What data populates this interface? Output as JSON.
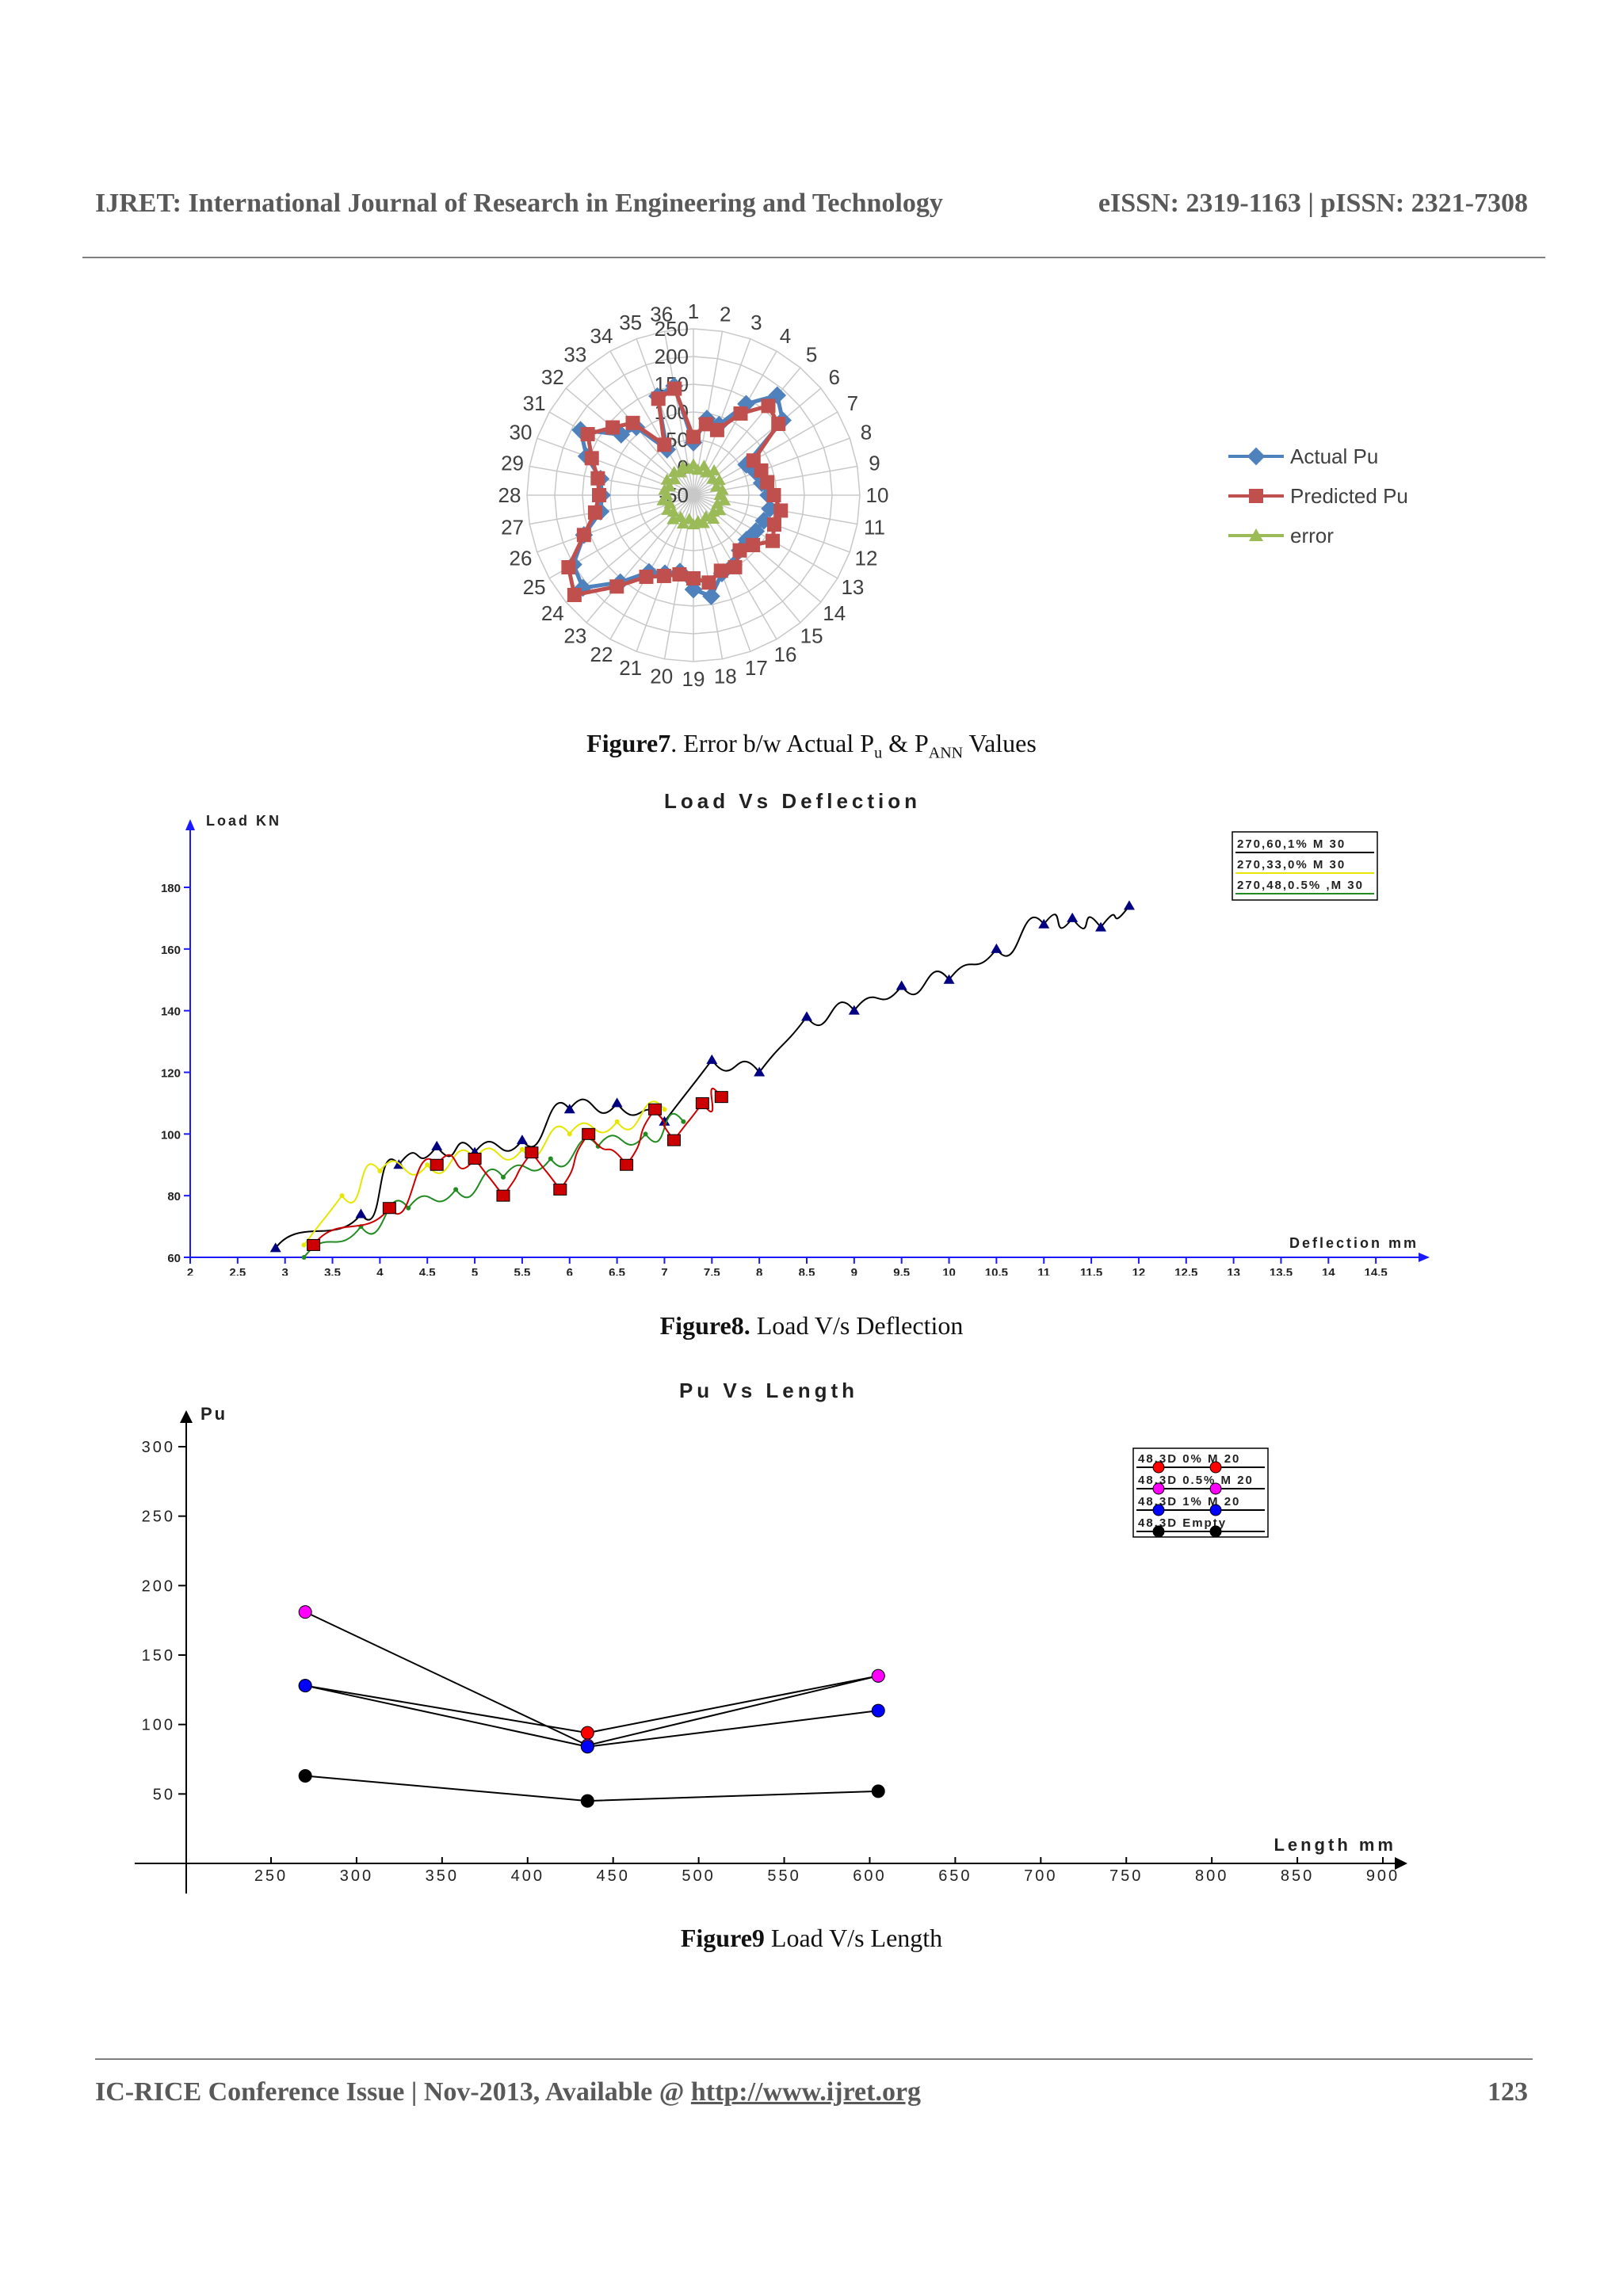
{
  "header": {
    "journal": "IJRET: International Journal of Research in Engineering and Technology",
    "issn": "eISSN: 2319-1163 | pISSN: 2321-7308"
  },
  "figure7": {
    "caption_label": "Figure7",
    "caption_text": ". Error b/w Actual P",
    "caption_sub1": "u",
    "caption_mid": " & P",
    "caption_sub2": "ANN",
    "caption_end": " Values"
  },
  "figure8": {
    "caption_label": "Figure8.",
    "caption_text": " Load V/s Deflection"
  },
  "figure9": {
    "caption_label": "Figure9",
    "caption_text": " Load V/s Length"
  },
  "footer": {
    "conference": "IC-RICE Conference Issue | Nov-2013, Available @ ",
    "link": "http://www.ijret.org",
    "page": "123"
  },
  "chart_data": [
    {
      "type": "radar",
      "categories": [
        "1",
        "2",
        "3",
        "4",
        "5",
        "6",
        "7",
        "8",
        "9",
        "10",
        "11",
        "12",
        "13",
        "14",
        "15",
        "16",
        "17",
        "18",
        "19",
        "20",
        "21",
        "22",
        "23",
        "24",
        "25",
        "26",
        "27",
        "28",
        "29",
        "30",
        "31",
        "32",
        "33",
        "34",
        "35",
        "36"
      ],
      "radial_ticks": [
        "-50",
        "0",
        "50",
        "100",
        "150",
        "200",
        "250"
      ],
      "rlim": [
        -50,
        250
      ],
      "grid": true,
      "legend_position": "right",
      "colors": {
        "Actual Pu": "#4f81bd",
        "Predicted Pu": "#c0504d",
        "error": "#9bbb59"
      },
      "series": [
        {
          "name": "Actual Pu",
          "values": [
            45,
            90,
            85,
            140,
            185,
            160,
            60,
            70,
            75,
            85,
            90,
            85,
            80,
            75,
            80,
            95,
            100,
            135,
            120,
            90,
            100,
            110,
            155,
            210,
            200,
            160,
            120,
            115,
            120,
            155,
            185,
            120,
            110,
            45,
            140,
            150
          ]
        },
        {
          "name": "Predicted Pu",
          "values": [
            55,
            80,
            75,
            120,
            160,
            150,
            75,
            80,
            85,
            95,
            110,
            105,
            115,
            90,
            80,
            100,
            95,
            110,
            100,
            95,
            105,
            120,
            165,
            230,
            210,
            160,
            130,
            120,
            125,
            145,
            170,
            140,
            120,
            55,
            135,
            145
          ]
        },
        {
          "name": "error",
          "values": [
            5,
            -4,
            6,
            -3,
            8,
            -5,
            4,
            -6,
            3,
            -2,
            7,
            -4,
            5,
            -3,
            6,
            -5,
            4,
            -2,
            3,
            -6,
            5,
            -4,
            7,
            -3,
            4,
            -5,
            6,
            -2,
            3,
            -4,
            5,
            -6,
            4,
            -3,
            5,
            -2
          ]
        }
      ]
    },
    {
      "type": "line",
      "title": "Load Vs Deflection",
      "ylabel": "Load KN",
      "xlabel": "Deflection mm",
      "xlim": [
        2,
        15
      ],
      "ylim": [
        60,
        190
      ],
      "xticks": [
        "2",
        "2.5",
        "3",
        "3.5",
        "4",
        "4.5",
        "5",
        "5.5",
        "6",
        "6.5",
        "7",
        "7.5",
        "8",
        "8.5",
        "9",
        "9.5",
        "10",
        "10.5",
        "11",
        "11.5",
        "12",
        "12.5",
        "13",
        "13.5",
        "14",
        "14.5"
      ],
      "yticks": [
        "60",
        "80",
        "100",
        "120",
        "140",
        "160",
        "180"
      ],
      "legend_position": "top-right",
      "series": [
        {
          "name": "270,60,1% M 30",
          "color": "#000080",
          "x": [
            2.9,
            3.8,
            4.2,
            4.6,
            5.0,
            5.5,
            6.0,
            6.5,
            7.0,
            7.5,
            8.0,
            8.5,
            9.0,
            9.5,
            10.0,
            10.5,
            11.0,
            11.3,
            11.6,
            11.9
          ],
          "y": [
            63,
            74,
            90,
            96,
            94,
            98,
            108,
            110,
            104,
            124,
            120,
            138,
            140,
            148,
            150,
            160,
            168,
            170,
            167,
            174
          ]
        },
        {
          "name": "270,33,0% M 30",
          "color": "#e6e600",
          "x": [
            3.2,
            3.6,
            4.0,
            4.5,
            5.0,
            5.5,
            6.0,
            6.5,
            7.0
          ],
          "y": [
            64,
            80,
            88,
            90,
            92,
            95,
            100,
            104,
            108
          ]
        },
        {
          "name": "270,48,0.5% ,M 30",
          "color": "#228b22",
          "x": [
            3.2,
            3.8,
            4.3,
            4.8,
            5.3,
            5.8,
            6.3,
            6.8,
            7.2
          ],
          "y": [
            60,
            70,
            76,
            82,
            86,
            92,
            96,
            100,
            104
          ]
        },
        {
          "name": "",
          "color": "#cc0000",
          "x": [
            3.3,
            4.1,
            4.6,
            5.0,
            5.3,
            5.6,
            5.9,
            6.2,
            6.6,
            6.9,
            7.1,
            7.4,
            7.6
          ],
          "y": [
            64,
            76,
            90,
            92,
            80,
            94,
            82,
            100,
            90,
            108,
            98,
            110,
            112
          ]
        }
      ]
    },
    {
      "type": "line",
      "title": "Pu Vs Length",
      "ylabel": "Pu",
      "xlabel": "Length mm",
      "xlim": [
        200,
        910
      ],
      "ylim": [
        0,
        320
      ],
      "xticks": [
        "250",
        "300",
        "350",
        "400",
        "450",
        "500",
        "550",
        "600",
        "650",
        "700",
        "750",
        "800",
        "850",
        "900"
      ],
      "yticks": [
        "50",
        "100",
        "150",
        "200",
        "250",
        "300"
      ],
      "legend_position": "top-right",
      "series": [
        {
          "name": "48,3D 0% M 20",
          "color": "#ff0000",
          "x": [
            270,
            435,
            605
          ],
          "y": [
            128,
            94,
            135
          ]
        },
        {
          "name": "48,3D 0.5% M 20",
          "color": "#ff00ff",
          "x": [
            270,
            435,
            605
          ],
          "y": [
            181,
            85,
            135
          ]
        },
        {
          "name": "48,3D 1% M 20",
          "color": "#0000ff",
          "x": [
            270,
            435,
            605
          ],
          "y": [
            128,
            84,
            110
          ]
        },
        {
          "name": "48,3D Empty",
          "color": "#000000",
          "x": [
            270,
            435,
            605
          ],
          "y": [
            63,
            45,
            52
          ]
        }
      ]
    }
  ]
}
